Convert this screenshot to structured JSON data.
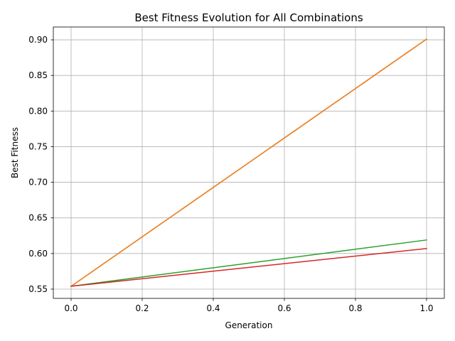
{
  "chart_data": {
    "type": "line",
    "title": "Best Fitness Evolution for All Combinations",
    "xlabel": "Generation",
    "ylabel": "Best Fitness",
    "xlim": [
      -0.05,
      1.05
    ],
    "ylim": [
      0.537,
      0.918
    ],
    "xticks": [
      0.0,
      0.2,
      0.4,
      0.6,
      0.8,
      1.0
    ],
    "xtick_labels": [
      "0.0",
      "0.2",
      "0.4",
      "0.6",
      "0.8",
      "1.0"
    ],
    "yticks": [
      0.55,
      0.6,
      0.65,
      0.7,
      0.75,
      0.8,
      0.85,
      0.9
    ],
    "ytick_labels": [
      "0.55",
      "0.60",
      "0.65",
      "0.70",
      "0.75",
      "0.80",
      "0.85",
      "0.90"
    ],
    "grid": true,
    "legend": "none",
    "x": [
      0,
      1
    ],
    "series": [
      {
        "values": [
          0.554,
          0.901
        ],
        "color": "#1f77b4"
      },
      {
        "values": [
          0.554,
          0.901
        ],
        "color": "#ff7f0e"
      },
      {
        "values": [
          0.554,
          0.619
        ],
        "color": "#2ca02c"
      },
      {
        "values": [
          0.554,
          0.607
        ],
        "color": "#d62728"
      }
    ]
  }
}
